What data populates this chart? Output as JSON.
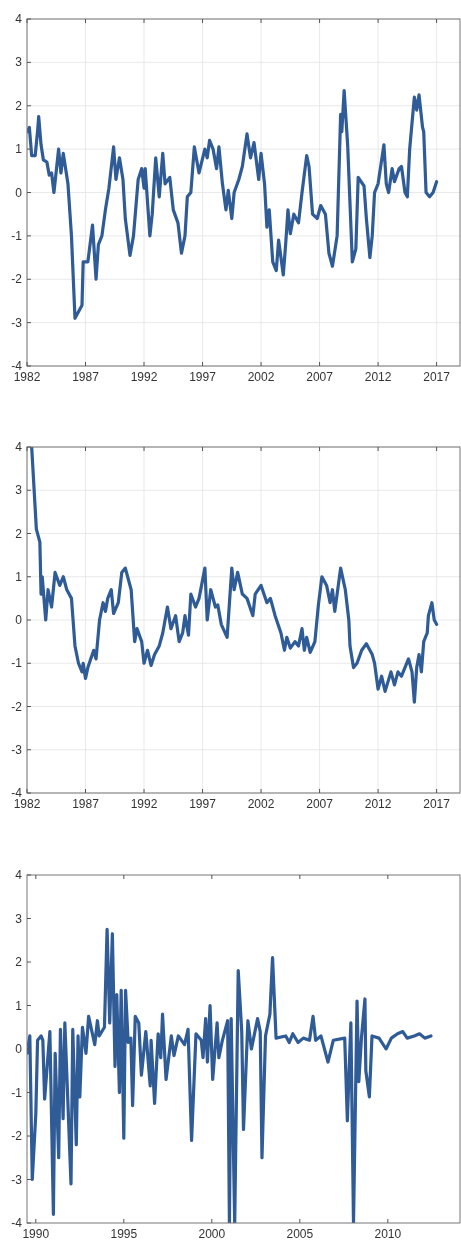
{
  "chart_data": [
    {
      "type": "line",
      "xlim": [
        1982,
        2019
      ],
      "xticks": [
        1982,
        1987,
        1992,
        1997,
        2002,
        2007,
        2012,
        2017
      ],
      "ylim": [
        -4,
        4
      ],
      "yticks": [
        -4,
        -3,
        -2,
        -1,
        0,
        1,
        2,
        3,
        4
      ],
      "grid": true,
      "x": [
        1982.0,
        1982.2,
        1982.4,
        1982.7,
        1982.9,
        1983.0,
        1983.2,
        1983.4,
        1983.7,
        1983.9,
        1984.1,
        1984.3,
        1984.5,
        1984.7,
        1984.9,
        1985.1,
        1985.5,
        1985.8,
        1986.1,
        1986.7,
        1986.8,
        1987.2,
        1987.6,
        1987.9,
        1988.1,
        1988.4,
        1988.7,
        1989.0,
        1989.4,
        1989.6,
        1989.9,
        1990.2,
        1990.4,
        1990.8,
        1991.1,
        1991.5,
        1991.8,
        1992.0,
        1992.1,
        1992.5,
        1992.7,
        1993.0,
        1993.3,
        1993.6,
        1993.8,
        1994.2,
        1994.5,
        1994.9,
        1995.2,
        1995.5,
        1995.7,
        1996.0,
        1996.3,
        1996.7,
        1997.2,
        1997.4,
        1997.6,
        1997.9,
        1998.2,
        1998.4,
        1998.7,
        1999.0,
        1999.2,
        1999.5,
        1999.7,
        2000.1,
        2000.4,
        2000.8,
        2001.1,
        2001.4,
        2001.8,
        2002.0,
        2002.3,
        2002.5,
        2002.7,
        2003.0,
        2003.3,
        2003.5,
        2003.9,
        2004.1,
        2004.3,
        2004.5,
        2004.8,
        2005.2,
        2005.5,
        2005.9,
        2006.1,
        2006.4,
        2006.8,
        2007.1,
        2007.5,
        2007.8,
        2008.1,
        2008.5,
        2008.8,
        2008.9,
        2009.1,
        2009.4,
        2009.8,
        2010.1,
        2010.3,
        2010.8,
        2011.0,
        2011.3,
        2011.5,
        2011.7,
        2012.0,
        2012.5,
        2012.7,
        2012.9,
        2013.2,
        2013.4,
        2013.8,
        2014.0,
        2014.3,
        2014.5,
        2014.7,
        2015.1,
        2015.3,
        2015.5,
        2015.8,
        2015.9,
        2016.1,
        2016.4,
        2016.7,
        2017.0
      ],
      "series": [
        {
          "color": "#2f5b96",
          "values": [
            1.4,
            1.5,
            0.85,
            0.85,
            1.4,
            1.75,
            1.1,
            0.75,
            0.7,
            0.4,
            0.45,
            0.0,
            0.5,
            1.0,
            0.45,
            0.9,
            0.2,
            -1.0,
            -2.9,
            -2.6,
            -1.6,
            -1.6,
            -0.75,
            -2.0,
            -1.2,
            -1.0,
            -0.4,
            0.1,
            1.05,
            0.3,
            0.8,
            0.3,
            -0.6,
            -1.45,
            -1.0,
            0.3,
            0.55,
            0.1,
            0.55,
            -1.0,
            -0.5,
            0.8,
            -0.1,
            0.9,
            0.2,
            0.35,
            -0.4,
            -0.7,
            -1.4,
            -1.0,
            -0.1,
            0.0,
            1.05,
            0.45,
            1.0,
            0.8,
            1.2,
            1.0,
            0.55,
            1.05,
            0.2,
            -0.4,
            0.05,
            -0.6,
            0.0,
            0.3,
            0.6,
            1.35,
            0.8,
            1.15,
            0.3,
            0.9,
            0.2,
            -0.8,
            -0.4,
            -1.6,
            -1.8,
            -1.1,
            -1.9,
            -1.2,
            -0.4,
            -0.95,
            -0.5,
            -0.7,
            0.0,
            0.85,
            0.6,
            -0.5,
            -0.6,
            -0.3,
            -0.5,
            -1.4,
            -1.7,
            -1.0,
            1.8,
            1.4,
            2.35,
            1.1,
            -1.6,
            -1.3,
            0.35,
            0.15,
            -0.6,
            -1.5,
            -1.0,
            0.0,
            0.2,
            1.1,
            0.2,
            0.0,
            0.55,
            0.25,
            0.55,
            0.6,
            0.0,
            -0.1,
            1.0,
            2.2,
            1.9,
            2.25,
            1.5,
            1.4,
            0.0,
            -0.1,
            0.0,
            0.25
          ]
        }
      ]
    },
    {
      "type": "line",
      "xlim": [
        1982,
        2019
      ],
      "xticks": [
        1982,
        1987,
        1992,
        1997,
        2002,
        2007,
        2012,
        2017
      ],
      "ylim": [
        -4,
        4
      ],
      "yticks": [
        -4,
        -3,
        -2,
        -1,
        0,
        1,
        2,
        3,
        4
      ],
      "grid": true,
      "x": [
        1982.4,
        1982.8,
        1983.1,
        1983.2,
        1983.3,
        1983.6,
        1983.8,
        1984.1,
        1984.4,
        1984.8,
        1985.1,
        1985.4,
        1985.8,
        1986.1,
        1986.4,
        1986.7,
        1986.8,
        1987.0,
        1987.2,
        1987.7,
        1987.9,
        1988.2,
        1988.5,
        1988.7,
        1988.9,
        1989.2,
        1989.4,
        1989.8,
        1990.1,
        1990.4,
        1990.9,
        1991.2,
        1991.4,
        1991.8,
        1992.0,
        1992.3,
        1992.6,
        1992.9,
        1993.3,
        1993.6,
        1994.0,
        1994.3,
        1994.7,
        1995.0,
        1995.3,
        1995.5,
        1995.8,
        1996.0,
        1996.4,
        1996.7,
        1997.2,
        1997.4,
        1997.7,
        1998.1,
        1998.3,
        1998.6,
        1999.1,
        1999.5,
        1999.7,
        2000.0,
        2000.4,
        2000.8,
        2001.3,
        2001.5,
        2002.0,
        2002.5,
        2002.8,
        2003.2,
        2003.7,
        2004.0,
        2004.2,
        2004.5,
        2004.9,
        2005.2,
        2005.5,
        2005.7,
        2005.9,
        2006.2,
        2006.6,
        2006.9,
        2007.2,
        2007.6,
        2007.9,
        2008.1,
        2008.3,
        2008.8,
        2009.2,
        2009.5,
        2009.6,
        2009.9,
        2010.2,
        2010.6,
        2011.0,
        2011.5,
        2011.7,
        2012.0,
        2012.3,
        2012.6,
        2013.1,
        2013.4,
        2013.7,
        2014.0,
        2014.6,
        2014.9,
        2015.1,
        2015.3,
        2015.5,
        2015.7,
        2015.9,
        2016.2,
        2016.3,
        2016.6,
        2016.8,
        2017.0
      ],
      "series": [
        {
          "color": "#2f5b96",
          "values": [
            4.0,
            2.1,
            1.8,
            0.6,
            1.0,
            0.0,
            0.7,
            0.3,
            1.1,
            0.8,
            1.0,
            0.7,
            0.5,
            -0.6,
            -1.0,
            -1.2,
            -1.0,
            -1.35,
            -1.1,
            -0.7,
            -0.9,
            0.0,
            0.4,
            0.2,
            0.5,
            0.7,
            0.15,
            0.4,
            1.1,
            1.2,
            0.7,
            -0.5,
            -0.2,
            -0.5,
            -1.0,
            -0.7,
            -1.05,
            -0.8,
            -0.6,
            -0.3,
            0.3,
            -0.2,
            0.1,
            -0.5,
            -0.3,
            0.1,
            -0.35,
            0.6,
            0.3,
            0.5,
            1.2,
            0.0,
            0.7,
            0.3,
            0.35,
            -0.1,
            -0.4,
            1.2,
            0.7,
            1.1,
            0.6,
            0.5,
            0.1,
            0.6,
            0.8,
            0.4,
            0.5,
            0.1,
            -0.3,
            -0.7,
            -0.4,
            -0.65,
            -0.5,
            -0.6,
            -0.2,
            -0.7,
            -0.4,
            -0.75,
            -0.5,
            0.35,
            1.0,
            0.8,
            0.4,
            0.7,
            0.2,
            1.2,
            0.7,
            0.0,
            -0.6,
            -1.1,
            -1.0,
            -0.7,
            -0.55,
            -0.8,
            -1.0,
            -1.6,
            -1.3,
            -1.65,
            -1.2,
            -1.5,
            -1.2,
            -1.3,
            -0.9,
            -1.2,
            -1.9,
            -1.1,
            -0.8,
            -1.2,
            -0.5,
            -0.3,
            0.1,
            0.4,
            0.0,
            -0.1
          ]
        }
      ]
    },
    {
      "type": "line",
      "xlim": [
        1989.5,
        2014.1
      ],
      "xticks": [
        1990,
        1995,
        2000,
        2005,
        2010
      ],
      "ylim": [
        -4,
        4
      ],
      "yticks": [
        -4,
        -3,
        -2,
        -1,
        0,
        1,
        2,
        3,
        4
      ],
      "x": [
        1989.5,
        1989.66,
        1989.8,
        1990.0,
        1990.1,
        1990.3,
        1990.4,
        1990.5,
        1990.8,
        1991.0,
        1991.1,
        1991.3,
        1991.4,
        1991.55,
        1991.65,
        1992.0,
        1992.1,
        1992.3,
        1992.4,
        1992.5,
        1992.65,
        1992.85,
        1993.0,
        1993.35,
        1993.5,
        1993.6,
        1993.9,
        1994.05,
        1994.2,
        1994.35,
        1994.5,
        1994.6,
        1994.75,
        1994.85,
        1995.0,
        1995.1,
        1995.25,
        1995.4,
        1995.5,
        1995.65,
        1995.85,
        1996.0,
        1996.25,
        1996.5,
        1996.55,
        1996.75,
        1996.95,
        1997.1,
        1997.2,
        1997.4,
        1997.7,
        1997.85,
        1998.1,
        1998.45,
        1998.65,
        1998.85,
        1999.1,
        1999.4,
        1999.5,
        1999.65,
        1999.75,
        1999.9,
        2000.05,
        2000.3,
        2000.4,
        2000.6,
        2000.9,
        2001.0,
        2001.1,
        2001.3,
        2001.5,
        2001.7,
        2001.8,
        2002.05,
        2002.25,
        2002.45,
        2002.6,
        2002.75,
        2002.85,
        2003.05,
        2003.3,
        2003.45,
        2003.65,
        2004.2,
        2004.4,
        2004.6,
        2004.9,
        2005.2,
        2005.55,
        2005.75,
        2005.9,
        2006.2,
        2006.6,
        2006.9,
        2007.55,
        2007.7,
        2007.9,
        2008.05,
        2008.25,
        2008.35,
        2008.5,
        2008.7,
        2008.75,
        2008.95,
        2009.1,
        2009.5,
        2009.9,
        2010.2,
        2010.55,
        2010.85,
        2011.1,
        2011.5,
        2011.8,
        2012.1,
        2012.45
      ],
      "series": [
        {
          "color": "#2f5b96",
          "values": [
            -0.1,
            0.3,
            -3.0,
            -1.5,
            0.2,
            0.3,
            0.2,
            -1.15,
            0.4,
            -3.8,
            -0.1,
            -2.5,
            0.45,
            -1.6,
            0.6,
            -3.1,
            0.45,
            -2.2,
            0.3,
            -1.1,
            0.5,
            -0.1,
            0.75,
            0.1,
            0.65,
            0.3,
            0.5,
            2.75,
            0.6,
            2.65,
            -0.4,
            1.25,
            -1.0,
            1.35,
            -2.05,
            1.35,
            0.15,
            0.25,
            -1.3,
            0.75,
            0.6,
            -0.6,
            0.4,
            -0.85,
            0.2,
            -1.25,
            0.35,
            -0.2,
            0.8,
            -0.7,
            0.3,
            -0.15,
            0.3,
            0.1,
            0.45,
            -2.1,
            0.35,
            0.2,
            -0.2,
            0.7,
            -0.3,
            1.0,
            -0.7,
            0.6,
            -0.2,
            0.2,
            0.65,
            -4.0,
            0.7,
            -4.0,
            1.8,
            0.4,
            -1.85,
            0.65,
            0.0,
            0.4,
            0.7,
            0.4,
            -2.5,
            0.3,
            0.8,
            2.1,
            0.25,
            0.3,
            0.15,
            0.35,
            0.15,
            0.25,
            0.2,
            0.75,
            0.2,
            0.3,
            -0.3,
            0.2,
            0.25,
            -1.65,
            0.6,
            -4.0,
            1.1,
            -0.75,
            0.25,
            1.15,
            -0.5,
            -1.1,
            0.3,
            0.25,
            0.0,
            0.25,
            0.35,
            0.4,
            0.25,
            0.3,
            0.35,
            0.25,
            0.3
          ]
        }
      ]
    }
  ]
}
